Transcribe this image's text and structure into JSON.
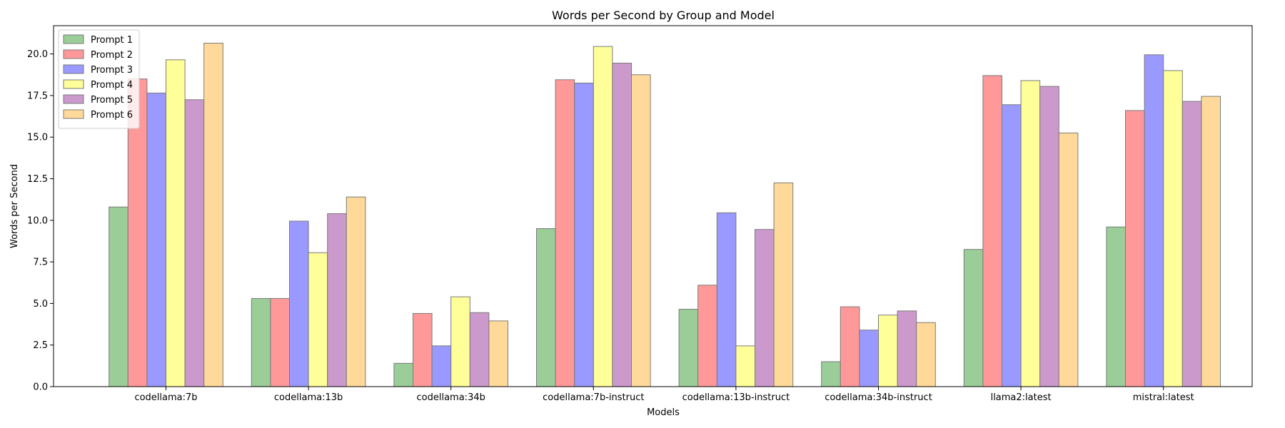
{
  "chart_data": {
    "type": "bar",
    "title": "Words per Second by Group and Model",
    "xlabel": "Models",
    "ylabel": "Words per Second",
    "ylim": [
      0,
      21.7
    ],
    "yticks": [
      "0.0",
      "2.5",
      "5.0",
      "7.5",
      "10.0",
      "12.5",
      "15.0",
      "17.5",
      "20.0"
    ],
    "grid": false,
    "legend_position": "top-left",
    "categories": [
      "codellama:7b",
      "codellama:13b",
      "codellama:34b",
      "codellama:7b-instruct",
      "codellama:13b-instruct",
      "codellama:34b-instruct",
      "llama2:latest",
      "mistral:latest"
    ],
    "series": [
      {
        "name": "Prompt 1",
        "color": "#9acd98",
        "values": [
          10.8,
          5.3,
          1.4,
          9.5,
          4.65,
          1.5,
          8.25,
          9.6
        ]
      },
      {
        "name": "Prompt 2",
        "color": "#ff9999",
        "values": [
          18.5,
          5.3,
          4.4,
          18.45,
          6.1,
          4.8,
          18.7,
          16.6
        ]
      },
      {
        "name": "Prompt 3",
        "color": "#9999ff",
        "values": [
          17.65,
          9.95,
          2.45,
          18.25,
          10.45,
          3.4,
          16.95,
          19.95
        ]
      },
      {
        "name": "Prompt 4",
        "color": "#ffff99",
        "values": [
          19.65,
          8.05,
          5.4,
          20.45,
          2.45,
          4.3,
          18.4,
          19.0
        ]
      },
      {
        "name": "Prompt 5",
        "color": "#cc99cc",
        "values": [
          17.25,
          10.4,
          4.45,
          19.45,
          9.45,
          4.55,
          18.05,
          17.15
        ]
      },
      {
        "name": "Prompt 6",
        "color": "#ffd999",
        "values": [
          20.65,
          11.4,
          3.95,
          18.75,
          12.25,
          3.85,
          15.25,
          17.45
        ]
      }
    ]
  }
}
